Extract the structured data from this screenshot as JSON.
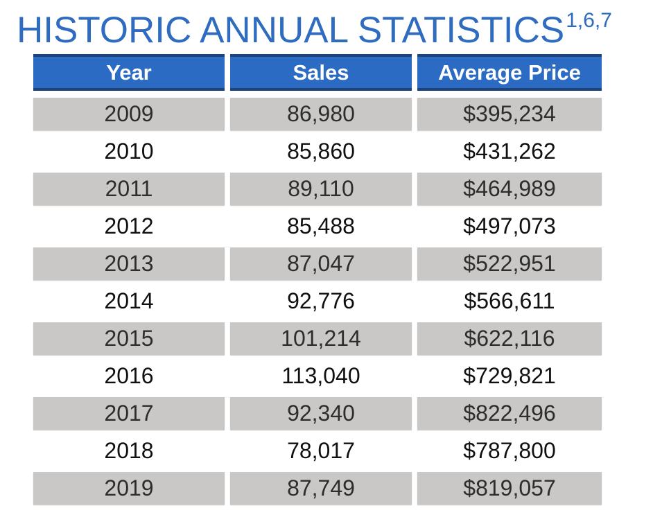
{
  "page": {
    "title": "HISTORIC ANNUAL STATISTICS",
    "title_superscript": "1,6,7"
  },
  "colors": {
    "title_blue": "#2f6cbf",
    "header_blue": "#2c6bc4",
    "header_border_navy": "#1d4379",
    "row_gray": "#c9c8c7",
    "header_text": "#ffffff",
    "body_text": "#101010"
  },
  "chart_data": {
    "type": "table",
    "title": "HISTORIC ANNUAL STATISTICS",
    "title_superscript": "1,6,7",
    "columns": [
      "Year",
      "Sales",
      "Average Price"
    ],
    "rows": [
      [
        "2009",
        "86,980",
        "$395,234"
      ],
      [
        "2010",
        "85,860",
        "$431,262"
      ],
      [
        "2011",
        "89,110",
        "$464,989"
      ],
      [
        "2012",
        "85,488",
        "$497,073"
      ],
      [
        "2013",
        "87,047",
        "$522,951"
      ],
      [
        "2014",
        "92,776",
        "$566,611"
      ],
      [
        "2015",
        "101,214",
        "$622,116"
      ],
      [
        "2016",
        "113,040",
        "$729,821"
      ],
      [
        "2017",
        "92,340",
        "$822,496"
      ],
      [
        "2018",
        "78,017",
        "$787,800"
      ],
      [
        "2019",
        "87,749",
        "$819,057"
      ]
    ]
  }
}
